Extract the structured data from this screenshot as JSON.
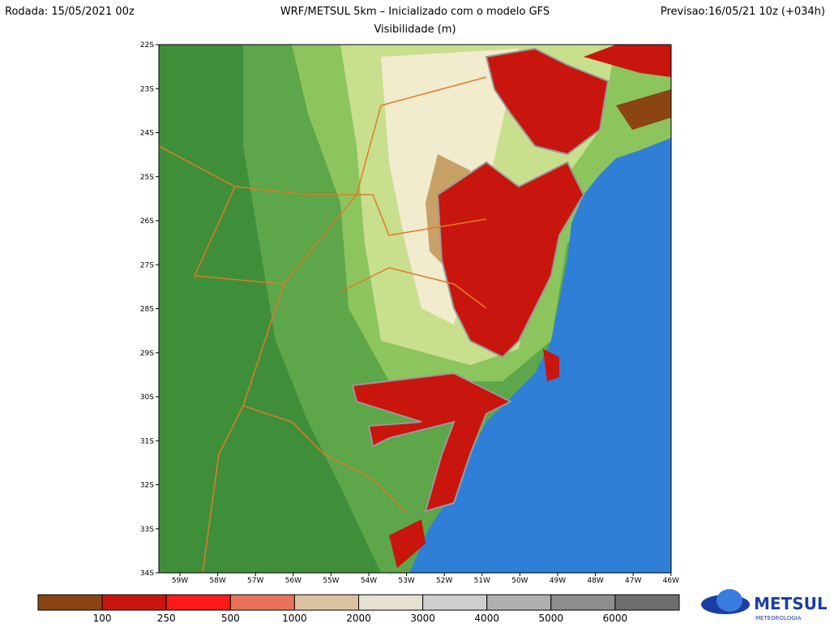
{
  "header": {
    "run": "Rodada: 15/05/2021 00z",
    "title": "WRF/METSUL 5km – Inicializado com o modelo GFS",
    "subtitle": "Visibilidade (m)",
    "forecast": "Previsao:16/05/21 10z (+034h)"
  },
  "map": {
    "lat_labels": [
      "22S",
      "23S",
      "24S",
      "25S",
      "26S",
      "27S",
      "28S",
      "29S",
      "30S",
      "31S",
      "32S",
      "33S",
      "34S"
    ],
    "lon_labels": [
      "59W",
      "58W",
      "57W",
      "56W",
      "55W",
      "54W",
      "53W",
      "52W",
      "51W",
      "50W",
      "49W",
      "48W",
      "47W",
      "46W"
    ]
  },
  "colorbar": {
    "colors": [
      "#8b4513",
      "#c8160f",
      "#ff1a1a",
      "#e8735a",
      "#dcc3a0",
      "#e6e0d0",
      "#cfcfcf",
      "#b0b0b0",
      "#8e8e8e",
      "#6e6e6e"
    ],
    "labels": [
      100,
      250,
      500,
      1000,
      2000,
      3000,
      4000,
      5000,
      6000
    ]
  },
  "logo": {
    "name": "METSUL",
    "tagline": "METEOROLOGIA"
  }
}
